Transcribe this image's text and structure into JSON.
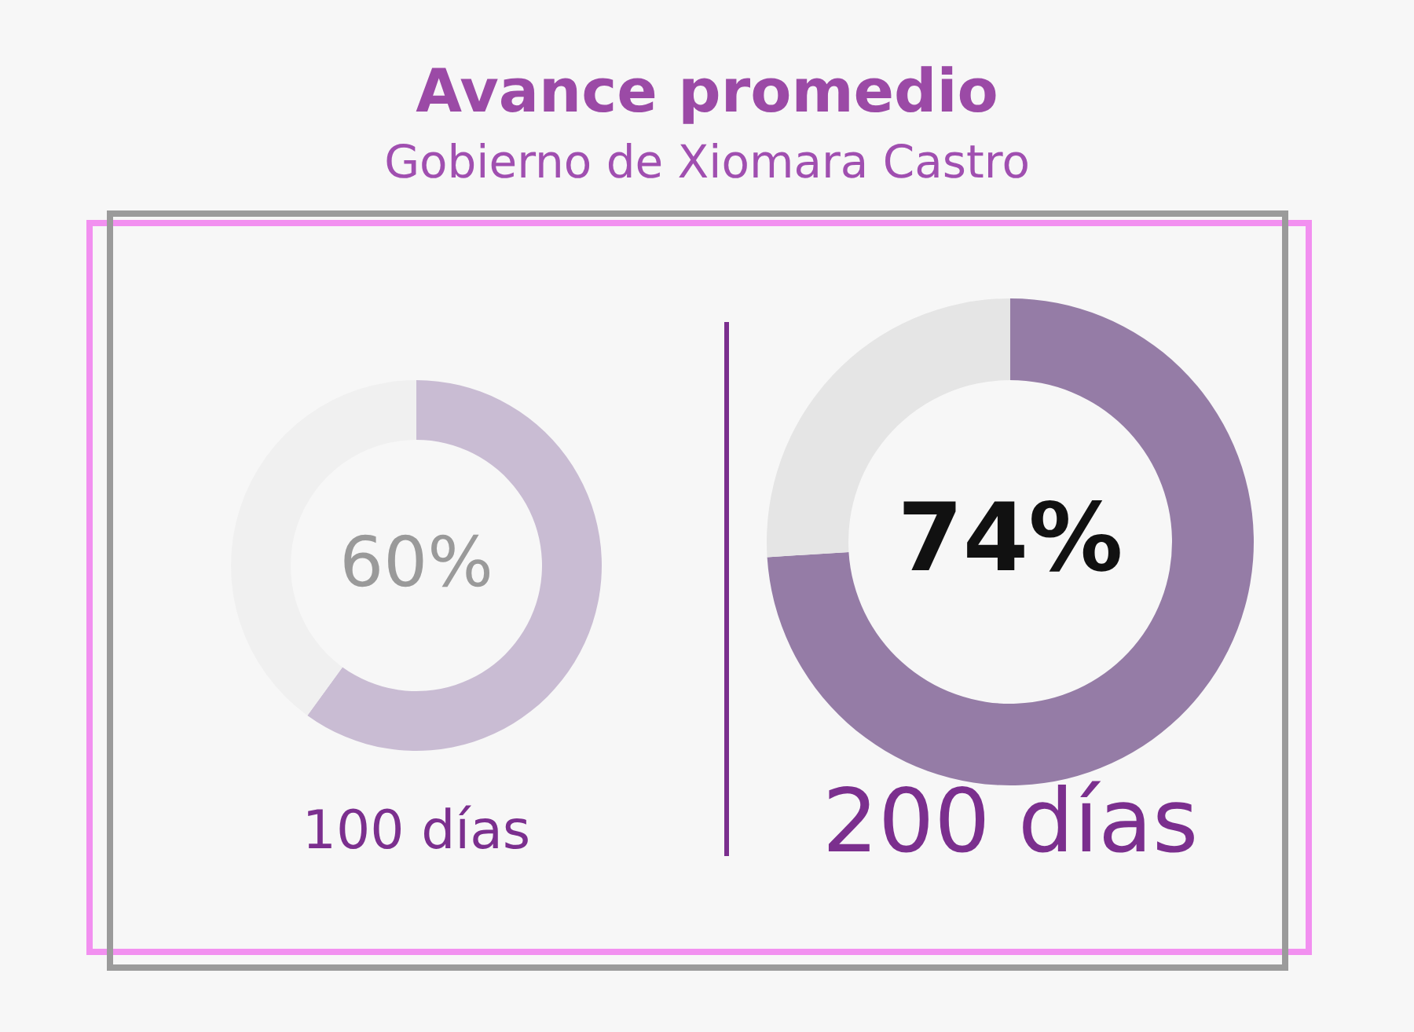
{
  "chart_data": [
    {
      "type": "donut",
      "title": "Avance promedio",
      "subtitle": "Gobierno de Xiomara Castro",
      "categories": [
        null,
        null
      ],
      "values": [
        60,
        40
      ],
      "colors": [
        "#c9bcd3",
        "#f0f0f0"
      ],
      "value_labels": [
        "60%",
        null
      ],
      "annotations": [
        "100 días"
      ]
    },
    {
      "type": "donut",
      "categories": [
        null,
        null
      ],
      "values": [
        74,
        26
      ],
      "colors": [
        "#957ca6",
        "#e5e5e5"
      ],
      "value_labels": [
        "74%",
        null
      ],
      "annotations": [
        "200 días"
      ]
    }
  ]
}
